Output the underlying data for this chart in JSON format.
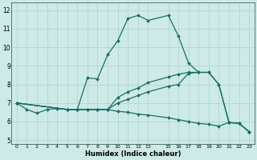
{
  "xlabel": "Humidex (Indice chaleur)",
  "xlim": [
    -0.5,
    23.5
  ],
  "ylim": [
    4.8,
    12.4
  ],
  "yticks": [
    5,
    6,
    7,
    8,
    9,
    10,
    11,
    12
  ],
  "xticks": [
    0,
    1,
    2,
    3,
    4,
    5,
    6,
    7,
    8,
    9,
    10,
    11,
    12,
    13,
    15,
    16,
    17,
    18,
    19,
    20,
    21,
    22,
    23
  ],
  "bg_color": "#cdeae7",
  "line_color": "#1a6e64",
  "grid_color": "#a8d4d0",
  "line1_x": [
    0,
    1,
    2,
    3,
    4,
    5,
    6,
    7,
    8,
    9,
    10,
    11,
    12,
    13,
    15,
    16,
    17,
    18
  ],
  "line1_y": [
    7.0,
    6.65,
    6.45,
    6.65,
    6.7,
    6.65,
    6.65,
    8.35,
    8.3,
    9.6,
    10.35,
    11.55,
    11.72,
    11.45,
    11.72,
    10.6,
    9.15,
    8.65
  ],
  "line2_x": [
    0,
    5,
    6,
    7,
    8,
    9,
    10,
    11,
    12,
    13,
    15,
    16,
    17,
    18,
    19,
    20,
    21,
    22,
    23
  ],
  "line2_y": [
    7.0,
    6.65,
    6.65,
    6.65,
    6.65,
    6.65,
    6.55,
    6.5,
    6.4,
    6.35,
    6.2,
    6.1,
    6.0,
    5.9,
    5.85,
    5.75,
    5.95,
    5.9,
    5.45
  ],
  "line3_x": [
    0,
    5,
    6,
    7,
    8,
    9,
    10,
    11,
    12,
    13,
    15,
    16,
    17,
    18,
    19,
    20,
    21,
    22,
    23
  ],
  "line3_y": [
    7.0,
    6.65,
    6.65,
    6.65,
    6.65,
    6.65,
    7.0,
    7.2,
    7.4,
    7.6,
    7.9,
    8.0,
    8.6,
    8.65,
    8.65,
    8.0,
    5.95,
    5.9,
    5.45
  ],
  "line4_x": [
    0,
    5,
    6,
    7,
    8,
    9,
    10,
    11,
    12,
    13,
    15,
    16,
    17,
    18,
    19,
    20,
    21,
    22,
    23
  ],
  "line4_y": [
    7.0,
    6.65,
    6.65,
    6.65,
    6.65,
    6.65,
    7.3,
    7.6,
    7.8,
    8.1,
    8.4,
    8.55,
    8.65,
    8.65,
    8.65,
    8.0,
    5.95,
    5.9,
    5.45
  ]
}
